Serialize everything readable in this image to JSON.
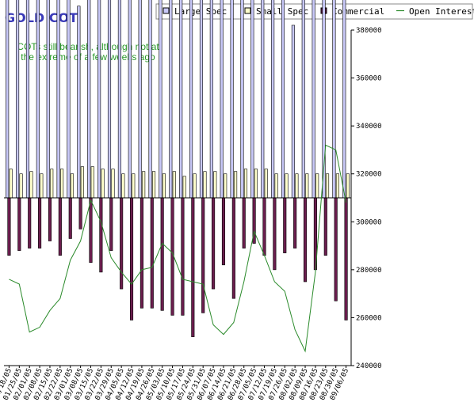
{
  "chart_data": {
    "type": "bar",
    "title": "GOLD COT",
    "annotation": [
      "COTs still bearish, although not at",
      "the extreme of a few weeks ago"
    ],
    "categories": [
      "01/18/05",
      "01/25/05",
      "02/01/05",
      "02/08/05",
      "02/15/05",
      "02/22/05",
      "03/01/05",
      "03/08/05",
      "03/15/05",
      "03/22/05",
      "03/29/05",
      "04/05/05",
      "04/12/05",
      "04/19/05",
      "04/26/05",
      "05/03/05",
      "05/10/05",
      "05/17/05",
      "05/24/05",
      "05/31/05",
      "06/07/05",
      "06/14/05",
      "06/21/05",
      "06/28/05",
      "07/05/05",
      "07/12/05",
      "07/19/05",
      "07/26/05",
      "08/02/05",
      "08/09/05",
      "08/16/05",
      "08/23/05",
      "08/30/05",
      "09/06/05"
    ],
    "x_tick_labels": [
      "01/18/05",
      "01/25/05",
      "02/01/05",
      "02/08/05",
      "02/15/05",
      "02/22/05",
      "03/01/05",
      "03/08/05",
      "03/15/05",
      "03/22/05",
      "03/29/05",
      "04/05/05",
      "04/12/05",
      "04/19/05",
      "04/26/05",
      "05/03/05",
      "05/10/05",
      "05/17/05",
      "05/24/05",
      "05/31/05",
      "06/07/05",
      "06/14/05",
      "06/21/05",
      "06/28/05",
      "07/05/05",
      "07/12/05",
      "07/19/05",
      "07/26/05",
      "08/02/05",
      "08/09/05",
      "08/16/05",
      "08/23/05",
      "08/30/05",
      "09/06/05"
    ],
    "y_ticks": [
      "380000",
      "360000",
      "340000",
      "320000",
      "300000",
      "280000",
      "260000",
      "240000"
    ],
    "ylim": [
      240000,
      380000
    ],
    "axis_position": "right",
    "zero_line_value": 310000,
    "legend_placement": "top-right",
    "series": [
      {
        "name": "Large Spec",
        "kind": "bar-up",
        "color": "#c8c8f8",
        "values": [
          100000,
          100000,
          90000,
          94000,
          97000,
          90000,
          88000,
          80000,
          92000,
          110000,
          115000,
          93000,
          103000,
          110000,
          111000,
          120000,
          110000,
          100000,
          100000,
          103000,
          99000,
          89000,
          102000,
          100000,
          107000,
          99000,
          101000,
          92000,
          72000,
          107000,
          113000,
          113000,
          101000,
          101000
        ]
      },
      {
        "name": "Small Spec",
        "kind": "bar-up",
        "color": "#ffffcc",
        "values": [
          12000,
          10000,
          11000,
          10000,
          12000,
          12000,
          10000,
          13000,
          13000,
          12000,
          12000,
          10000,
          10000,
          11000,
          11000,
          10000,
          11000,
          9000,
          10000,
          11000,
          11000,
          10000,
          11000,
          12000,
          12000,
          12000,
          10000,
          10000,
          10000,
          10000,
          10000,
          10000,
          10000,
          10000
        ]
      },
      {
        "name": "Commercial",
        "kind": "bar-down",
        "color": "#6b1e4e",
        "values": [
          -24000,
          -22000,
          -21000,
          -21000,
          -18000,
          -24000,
          -17000,
          -13000,
          -27000,
          -31000,
          -22000,
          -38000,
          -51000,
          -46000,
          -46000,
          -47000,
          -49000,
          -49000,
          -58000,
          -48000,
          -38000,
          -28000,
          -42000,
          -21000,
          -19000,
          -24000,
          -30000,
          -23000,
          -21000,
          -35000,
          -30000,
          -24000,
          -43000,
          -51000
        ]
      },
      {
        "name": "Open Interest",
        "kind": "line",
        "color": "#2a8a2a",
        "values": [
          276000,
          274000,
          254000,
          256000,
          263000,
          268000,
          284000,
          292000,
          309000,
          300000,
          285000,
          279000,
          274000,
          280000,
          281000,
          291000,
          287000,
          276000,
          275000,
          274000,
          257000,
          253000,
          258000,
          275000,
          296000,
          286000,
          275000,
          271000,
          255000,
          246000,
          279000,
          332000,
          330000,
          308000
        ]
      }
    ]
  }
}
